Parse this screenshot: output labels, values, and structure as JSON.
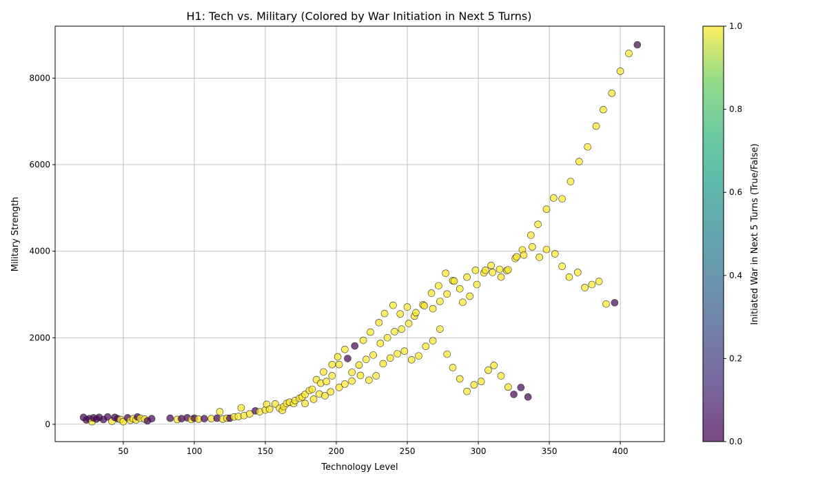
{
  "chart_data": {
    "type": "scatter",
    "title": "H1: Tech vs. Military (Colored by War Initiation in Next 5 Turns)",
    "xlabel": "Technology Level",
    "ylabel": "Military Strength",
    "xlim": [
      2,
      431
    ],
    "ylim": [
      -400,
      9200
    ],
    "xticks": [
      50,
      100,
      150,
      200,
      250,
      300,
      350,
      400
    ],
    "yticks": [
      0,
      2000,
      4000,
      6000,
      8000
    ],
    "grid": true,
    "colorbar": {
      "label": "Initiated War in Next 5 Turns (True/False)",
      "range": [
        0,
        1
      ],
      "ticks": [
        "0.0",
        "0.2",
        "0.4",
        "0.6",
        "0.8",
        "1.0"
      ],
      "colormap": "viridis"
    },
    "colors": {
      "true": "#fde725",
      "false": "#440154"
    },
    "points": [
      [
        22,
        160,
        0
      ],
      [
        24,
        100,
        0
      ],
      [
        26,
        130,
        0
      ],
      [
        28,
        60,
        1
      ],
      [
        29,
        150,
        0
      ],
      [
        31,
        120,
        0
      ],
      [
        33,
        160,
        0
      ],
      [
        36,
        110,
        0
      ],
      [
        39,
        170,
        0
      ],
      [
        42,
        70,
        1
      ],
      [
        44,
        160,
        0
      ],
      [
        46,
        130,
        0
      ],
      [
        48,
        110,
        1
      ],
      [
        50,
        60,
        1
      ],
      [
        53,
        150,
        0
      ],
      [
        55,
        90,
        1
      ],
      [
        57,
        130,
        1
      ],
      [
        59,
        100,
        1
      ],
      [
        60,
        170,
        0
      ],
      [
        62,
        140,
        1
      ],
      [
        65,
        120,
        1
      ],
      [
        67,
        80,
        0
      ],
      [
        70,
        130,
        0
      ],
      [
        83,
        140,
        0
      ],
      [
        88,
        110,
        1
      ],
      [
        91,
        130,
        0
      ],
      [
        95,
        150,
        0
      ],
      [
        98,
        110,
        1
      ],
      [
        100,
        140,
        0
      ],
      [
        103,
        120,
        1
      ],
      [
        107,
        130,
        0
      ],
      [
        112,
        130,
        1
      ],
      [
        116,
        140,
        0
      ],
      [
        118,
        290,
        1
      ],
      [
        120,
        120,
        1
      ],
      [
        123,
        140,
        1
      ],
      [
        125,
        140,
        0
      ],
      [
        128,
        170,
        1
      ],
      [
        131,
        180,
        1
      ],
      [
        133,
        380,
        1
      ],
      [
        135,
        200,
        1
      ],
      [
        139,
        240,
        1
      ],
      [
        143,
        310,
        0
      ],
      [
        146,
        290,
        1
      ],
      [
        150,
        330,
        1
      ],
      [
        151,
        460,
        1
      ],
      [
        153,
        350,
        1
      ],
      [
        157,
        470,
        1
      ],
      [
        160,
        370,
        1
      ],
      [
        162,
        320,
        1
      ],
      [
        163,
        410,
        1
      ],
      [
        165,
        480,
        1
      ],
      [
        167,
        510,
        1
      ],
      [
        170,
        480,
        1
      ],
      [
        171,
        550,
        1
      ],
      [
        174,
        600,
        1
      ],
      [
        176,
        630,
        1
      ],
      [
        178,
        480,
        1
      ],
      [
        178,
        690,
        1
      ],
      [
        181,
        780,
        1
      ],
      [
        183,
        810,
        1
      ],
      [
        184,
        580,
        1
      ],
      [
        186,
        1030,
        1
      ],
      [
        188,
        700,
        1
      ],
      [
        189,
        950,
        1
      ],
      [
        191,
        1210,
        1
      ],
      [
        192,
        660,
        1
      ],
      [
        193,
        990,
        1
      ],
      [
        196,
        750,
        1
      ],
      [
        197,
        1120,
        1
      ],
      [
        197,
        1380,
        1
      ],
      [
        201,
        1560,
        1
      ],
      [
        202,
        850,
        1
      ],
      [
        202,
        1380,
        1
      ],
      [
        206,
        930,
        1
      ],
      [
        206,
        1730,
        1
      ],
      [
        208,
        1520,
        0
      ],
      [
        211,
        1200,
        1
      ],
      [
        211,
        1000,
        1
      ],
      [
        213,
        1810,
        0
      ],
      [
        216,
        1370,
        1
      ],
      [
        217,
        1130,
        1
      ],
      [
        219,
        1940,
        1
      ],
      [
        221,
        1500,
        1
      ],
      [
        223,
        1020,
        1
      ],
      [
        224,
        2130,
        1
      ],
      [
        226,
        1600,
        1
      ],
      [
        228,
        1120,
        1
      ],
      [
        230,
        2350,
        1
      ],
      [
        231,
        1870,
        1
      ],
      [
        233,
        1400,
        1
      ],
      [
        234,
        2560,
        1
      ],
      [
        236,
        2000,
        1
      ],
      [
        238,
        1530,
        1
      ],
      [
        240,
        2750,
        1
      ],
      [
        241,
        2140,
        1
      ],
      [
        243,
        1630,
        1
      ],
      [
        245,
        2550,
        1
      ],
      [
        246,
        2200,
        1
      ],
      [
        248,
        1690,
        1
      ],
      [
        250,
        2710,
        1
      ],
      [
        251,
        2330,
        1
      ],
      [
        253,
        1490,
        1
      ],
      [
        255,
        2500,
        1
      ],
      [
        256,
        2580,
        1
      ],
      [
        258,
        1580,
        1
      ],
      [
        261,
        2760,
        1
      ],
      [
        263,
        1800,
        1
      ],
      [
        262,
        2740,
        1
      ],
      [
        267,
        3030,
        1
      ],
      [
        268,
        2670,
        1
      ],
      [
        268,
        1930,
        1
      ],
      [
        272,
        3200,
        1
      ],
      [
        273,
        2840,
        1
      ],
      [
        273,
        2200,
        1
      ],
      [
        277,
        3490,
        1
      ],
      [
        278,
        1620,
        1
      ],
      [
        278,
        3010,
        1
      ],
      [
        282,
        3320,
        1
      ],
      [
        282,
        1310,
        1
      ],
      [
        283,
        3310,
        1
      ],
      [
        287,
        1050,
        1
      ],
      [
        287,
        3130,
        1
      ],
      [
        289,
        2820,
        1
      ],
      [
        292,
        760,
        1
      ],
      [
        292,
        3400,
        1
      ],
      [
        294,
        2960,
        1
      ],
      [
        297,
        910,
        1
      ],
      [
        298,
        3560,
        1
      ],
      [
        299,
        3230,
        1
      ],
      [
        302,
        990,
        1
      ],
      [
        304,
        3500,
        1
      ],
      [
        305,
        3560,
        1
      ],
      [
        307,
        1250,
        1
      ],
      [
        309,
        3670,
        1
      ],
      [
        310,
        3510,
        1
      ],
      [
        311,
        1360,
        1
      ],
      [
        315,
        3580,
        1
      ],
      [
        316,
        3400,
        1
      ],
      [
        316,
        1120,
        1
      ],
      [
        320,
        3550,
        1
      ],
      [
        321,
        860,
        1
      ],
      [
        321,
        3570,
        1
      ],
      [
        325,
        690,
        0
      ],
      [
        326,
        3830,
        1
      ],
      [
        327,
        3870,
        1
      ],
      [
        330,
        850,
        0
      ],
      [
        331,
        4030,
        1
      ],
      [
        332,
        3910,
        1
      ],
      [
        335,
        630,
        0
      ],
      [
        337,
        4370,
        1
      ],
      [
        338,
        4100,
        1
      ],
      [
        342,
        4620,
        1
      ],
      [
        343,
        3860,
        1
      ],
      [
        348,
        4970,
        1
      ],
      [
        348,
        4040,
        1
      ],
      [
        353,
        5230,
        1
      ],
      [
        354,
        3940,
        1
      ],
      [
        359,
        5210,
        1
      ],
      [
        359,
        3650,
        1
      ],
      [
        364,
        3400,
        1
      ],
      [
        365,
        5610,
        1
      ],
      [
        370,
        3510,
        1
      ],
      [
        371,
        6070,
        1
      ],
      [
        375,
        3160,
        1
      ],
      [
        377,
        6410,
        1
      ],
      [
        380,
        3230,
        1
      ],
      [
        383,
        6890,
        1
      ],
      [
        385,
        3300,
        1
      ],
      [
        388,
        7270,
        1
      ],
      [
        390,
        2780,
        1
      ],
      [
        394,
        7650,
        1
      ],
      [
        396,
        2810,
        0
      ],
      [
        400,
        8160,
        1
      ],
      [
        406,
        8570,
        1
      ],
      [
        412,
        8770,
        0
      ]
    ]
  }
}
